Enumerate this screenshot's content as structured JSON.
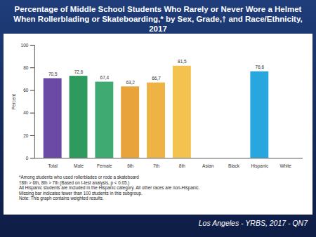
{
  "chart_data": {
    "type": "bar",
    "title": "Percentage of Middle School Students Who Rarely or Never Wore a Helmet When Rollerblading or Skateboarding,* by Sex, Grade,† and Race/Ethnicity, 2017",
    "y_label": "Percent",
    "categories": [
      "Total",
      "Male",
      "Female",
      "6th",
      "7th",
      "8th",
      "Asian",
      "Black",
      "Hispanic",
      "White"
    ],
    "values": [
      70.5,
      72.6,
      67.4,
      63.2,
      66.7,
      81.5,
      null,
      null,
      76.6,
      null
    ],
    "value_labels": [
      "70,5",
      "72,6",
      "67,4",
      "63,2",
      "66,7",
      "81,5",
      null,
      null,
      "76,6",
      null
    ],
    "colors": [
      "#6a4aa5",
      "#2e9a5e",
      "#3faa72",
      "#e8a33a",
      "#eeb245",
      "#f4c24e",
      null,
      null,
      "#2aa6df",
      null
    ],
    "ylim": [
      0,
      100
    ],
    "yticks": [
      0,
      20,
      40,
      60,
      80,
      100
    ],
    "grid": false,
    "data_labels": true,
    "notes": [
      "*Among students who used rollerblades or rode a skateboard",
      "†8th > 6th, 8th > 7th (Based on t-test analysis, p < 0.05.)",
      "All Hispanic students are included in the Hispanic category.  All other races are non-Hispanic.",
      "Missing bar indicates fewer than 100 students in this subgroup.",
      "Note: This graph contains weighted results."
    ],
    "source": "Los Angeles - YRBS, 2017 - QN7"
  }
}
